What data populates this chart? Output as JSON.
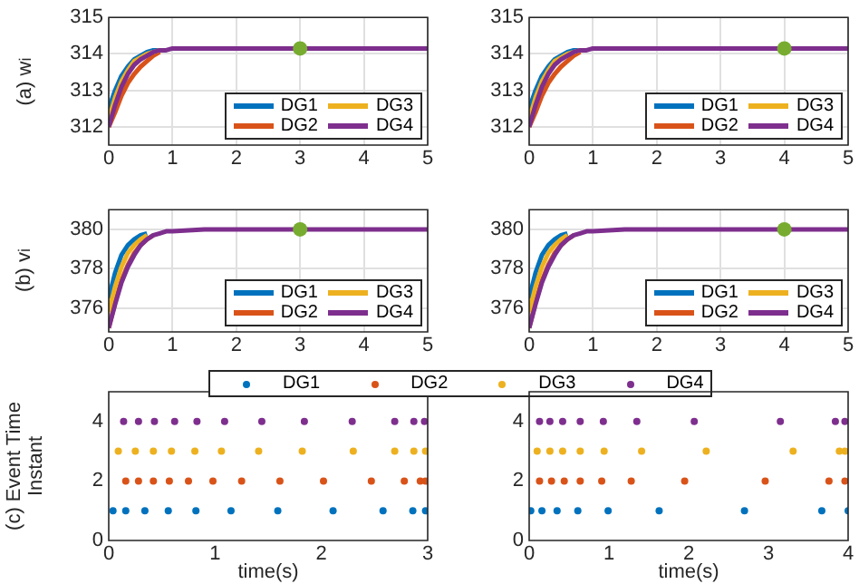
{
  "chart_data": [
    {
      "type": "line",
      "ylabel": "(a) w$_{i}$",
      "x": [
        0,
        0.1,
        0.2,
        0.3,
        0.4,
        0.5,
        0.6,
        0.7,
        0.8,
        0.9,
        1,
        1.5,
        5
      ],
      "xlim": [
        0,
        5
      ],
      "xticks": [
        0,
        1,
        2,
        3,
        4,
        5
      ],
      "ylim": [
        311.5,
        315
      ],
      "yticks": [
        312,
        313,
        314,
        315
      ],
      "grid": true,
      "legend": "bottom right",
      "marker": "none",
      "series": [
        {
          "name": "DG1",
          "color": "#0072bd",
          "values": [
            312.5,
            313.0,
            313.4,
            313.65,
            313.85,
            313.95,
            314.05,
            314.1,
            314.1,
            null,
            null,
            null,
            null
          ]
        },
        {
          "name": "DG2",
          "color": "#d95319",
          "values": [
            312.0,
            312.4,
            312.85,
            313.2,
            313.45,
            313.65,
            313.8,
            313.95,
            314.05,
            null,
            null,
            null,
            null
          ]
        },
        {
          "name": "DG3",
          "color": "#edb120",
          "values": [
            312.2,
            312.8,
            313.25,
            313.55,
            313.8,
            313.9,
            314.0,
            314.05,
            314.1,
            null,
            null,
            null,
            null
          ]
        },
        {
          "name": "DG4",
          "color": "#7e2f8e",
          "values": [
            312.0,
            312.6,
            313.1,
            313.45,
            313.7,
            313.85,
            313.95,
            314.05,
            314.1,
            314.1,
            314.15,
            314.15,
            314.15
          ]
        },
        {
          "type": "scatter",
          "marker": "circle",
          "color": "#77ac30",
          "x": [
            3
          ],
          "values": [
            314.15
          ]
        }
      ]
    },
    {
      "type": "line",
      "x": [
        0,
        0.1,
        0.2,
        0.3,
        0.4,
        0.5,
        0.6,
        0.7,
        0.8,
        0.9,
        1,
        1.5,
        5
      ],
      "xlim": [
        0,
        5
      ],
      "xticks": [
        0,
        1,
        2,
        3,
        4,
        5
      ],
      "ylim": [
        311.5,
        315
      ],
      "yticks": [
        312,
        313,
        314,
        315
      ],
      "grid": true,
      "legend": "bottom right",
      "marker": "none",
      "series": [
        {
          "name": "DG1",
          "color": "#0072bd",
          "values": [
            312.5,
            313.0,
            313.4,
            313.65,
            313.85,
            313.95,
            314.05,
            314.1,
            314.1,
            null,
            null,
            null,
            null
          ]
        },
        {
          "name": "DG2",
          "color": "#d95319",
          "values": [
            312.0,
            312.4,
            312.85,
            313.2,
            313.45,
            313.65,
            313.8,
            313.95,
            314.05,
            null,
            null,
            null,
            null
          ]
        },
        {
          "name": "DG3",
          "color": "#edb120",
          "values": [
            312.2,
            312.8,
            313.25,
            313.55,
            313.8,
            313.9,
            314.0,
            314.05,
            314.1,
            null,
            null,
            null,
            null
          ]
        },
        {
          "name": "DG4",
          "color": "#7e2f8e",
          "values": [
            312.0,
            312.6,
            313.1,
            313.45,
            313.7,
            313.85,
            313.95,
            314.05,
            314.1,
            314.1,
            314.15,
            314.15,
            314.15
          ]
        },
        {
          "type": "scatter",
          "marker": "circle",
          "color": "#77ac30",
          "x": [
            4
          ],
          "values": [
            314.15
          ]
        }
      ]
    },
    {
      "type": "line",
      "ylabel": "(b) v$_{i}$",
      "x": [
        0,
        0.1,
        0.2,
        0.3,
        0.4,
        0.5,
        0.6,
        0.7,
        0.8,
        0.9,
        1,
        1.5,
        5
      ],
      "xlim": [
        0,
        5
      ],
      "xticks": [
        0,
        1,
        2,
        3,
        4,
        5
      ],
      "ylim": [
        374.8,
        381
      ],
      "yticks": [
        376,
        378,
        380
      ],
      "grid": true,
      "legend": "bottom right",
      "marker": "none",
      "series": [
        {
          "name": "DG1",
          "color": "#0072bd",
          "values": [
            376.5,
            377.8,
            378.7,
            379.2,
            379.5,
            379.7,
            379.8,
            null,
            null,
            null,
            null,
            null,
            null
          ]
        },
        {
          "name": "DG2",
          "color": "#d95319",
          "values": [
            375,
            376.3,
            377.4,
            378.2,
            378.8,
            379.2,
            379.5,
            379.7,
            null,
            null,
            null,
            null,
            null
          ]
        },
        {
          "name": "DG3",
          "color": "#edb120",
          "values": [
            375.8,
            377.1,
            378.1,
            378.8,
            379.2,
            379.5,
            379.7,
            null,
            null,
            null,
            null,
            null,
            null
          ]
        },
        {
          "name": "DG4",
          "color": "#7e2f8e",
          "values": [
            375,
            376.2,
            377.3,
            378.1,
            378.7,
            379.2,
            379.5,
            379.7,
            379.8,
            379.9,
            379.9,
            380,
            380
          ]
        },
        {
          "type": "scatter",
          "marker": "circle",
          "color": "#77ac30",
          "x": [
            3
          ],
          "values": [
            380
          ]
        }
      ]
    },
    {
      "type": "line",
      "x": [
        0,
        0.1,
        0.2,
        0.3,
        0.4,
        0.5,
        0.6,
        0.7,
        0.8,
        0.9,
        1,
        1.5,
        5
      ],
      "xlim": [
        0,
        5
      ],
      "xticks": [
        0,
        1,
        2,
        3,
        4,
        5
      ],
      "ylim": [
        374.8,
        381
      ],
      "yticks": [
        376,
        378,
        380
      ],
      "grid": true,
      "legend": "bottom right",
      "marker": "none",
      "series": [
        {
          "name": "DG1",
          "color": "#0072bd",
          "values": [
            376.5,
            377.8,
            378.7,
            379.2,
            379.5,
            379.7,
            379.8,
            null,
            null,
            null,
            null,
            null,
            null
          ]
        },
        {
          "name": "DG2",
          "color": "#d95319",
          "values": [
            375,
            376.3,
            377.4,
            378.2,
            378.8,
            379.2,
            379.5,
            379.7,
            null,
            null,
            null,
            null,
            null
          ]
        },
        {
          "name": "DG3",
          "color": "#edb120",
          "values": [
            375.8,
            377.1,
            378.1,
            378.8,
            379.2,
            379.5,
            379.7,
            null,
            null,
            null,
            null,
            null,
            null
          ]
        },
        {
          "name": "DG4",
          "color": "#7e2f8e",
          "values": [
            375,
            376.2,
            377.3,
            378.1,
            378.7,
            379.2,
            379.5,
            379.7,
            379.8,
            379.9,
            379.9,
            380,
            380
          ]
        },
        {
          "type": "scatter",
          "marker": "circle",
          "color": "#77ac30",
          "x": [
            4
          ],
          "values": [
            380
          ]
        }
      ]
    },
    {
      "type": "scatter",
      "ylabel": "(c) Event Time Instant",
      "xlabel": "time(s)",
      "xlim": [
        0,
        3
      ],
      "xticks": [
        0,
        1,
        2,
        3
      ],
      "ylim": [
        0,
        5
      ],
      "yticks": [
        0,
        2,
        4
      ],
      "legend": "top",
      "marker": "circle",
      "series": [
        {
          "name": "DG1",
          "color": "#0072bd",
          "x": [
            0.04,
            0.16,
            0.34,
            0.56,
            0.82,
            1.15,
            1.59,
            2.11,
            2.58,
            2.86,
            2.98
          ],
          "values": [
            1,
            1,
            1,
            1,
            1,
            1,
            1,
            1,
            1,
            1,
            1
          ]
        },
        {
          "name": "DG2",
          "color": "#d95319",
          "x": [
            0.16,
            0.28,
            0.42,
            0.57,
            0.75,
            0.98,
            1.25,
            1.61,
            2.02,
            2.47,
            2.78,
            2.93,
            2.98
          ],
          "values": [
            2,
            2,
            2,
            2,
            2,
            2,
            2,
            2,
            2,
            2,
            2,
            2,
            2
          ]
        },
        {
          "name": "DG3",
          "color": "#edb120",
          "x": [
            0.09,
            0.25,
            0.42,
            0.59,
            0.81,
            1.06,
            1.41,
            1.82,
            2.3,
            2.69,
            2.87,
            2.98
          ],
          "values": [
            3,
            3,
            3,
            3,
            3,
            3,
            3,
            3,
            3,
            3,
            3,
            3
          ]
        },
        {
          "name": "DG4",
          "color": "#7e2f8e",
          "x": [
            0.14,
            0.28,
            0.43,
            0.62,
            0.83,
            1.09,
            1.44,
            1.84,
            2.29,
            2.69,
            2.87,
            2.97
          ],
          "values": [
            4,
            4,
            4,
            4,
            4,
            4,
            4,
            4,
            4,
            4,
            4,
            4
          ]
        }
      ]
    },
    {
      "type": "scatter",
      "xlabel": "time(s)",
      "xlim": [
        0,
        4
      ],
      "xticks": [
        0,
        1,
        2,
        3,
        4
      ],
      "ylim": [
        0,
        5
      ],
      "yticks": [
        0,
        2,
        4
      ],
      "marker": "circle",
      "series": [
        {
          "color": "#0072bd",
          "x": [
            0.02,
            0.16,
            0.35,
            0.61,
            0.99,
            1.63,
            2.7,
            3.67,
            4.0
          ],
          "values": [
            1,
            1,
            1,
            1,
            1,
            1,
            1,
            1,
            1
          ]
        },
        {
          "color": "#d95319",
          "x": [
            0.13,
            0.28,
            0.44,
            0.64,
            0.91,
            1.28,
            1.95,
            2.96,
            3.76,
            3.96
          ],
          "values": [
            2,
            2,
            2,
            2,
            2,
            2,
            2,
            2,
            2,
            2
          ]
        },
        {
          "color": "#edb120",
          "x": [
            0.1,
            0.26,
            0.42,
            0.64,
            0.94,
            1.41,
            2.22,
            3.31,
            3.89,
            3.96
          ],
          "values": [
            3,
            3,
            3,
            3,
            3,
            3,
            3,
            3,
            3,
            3
          ]
        },
        {
          "color": "#7e2f8e",
          "x": [
            0.13,
            0.26,
            0.42,
            0.64,
            0.93,
            1.35,
            2.07,
            3.15,
            3.84,
            3.96
          ],
          "values": [
            4,
            4,
            4,
            4,
            4,
            4,
            4,
            4,
            4,
            4
          ]
        }
      ]
    }
  ]
}
